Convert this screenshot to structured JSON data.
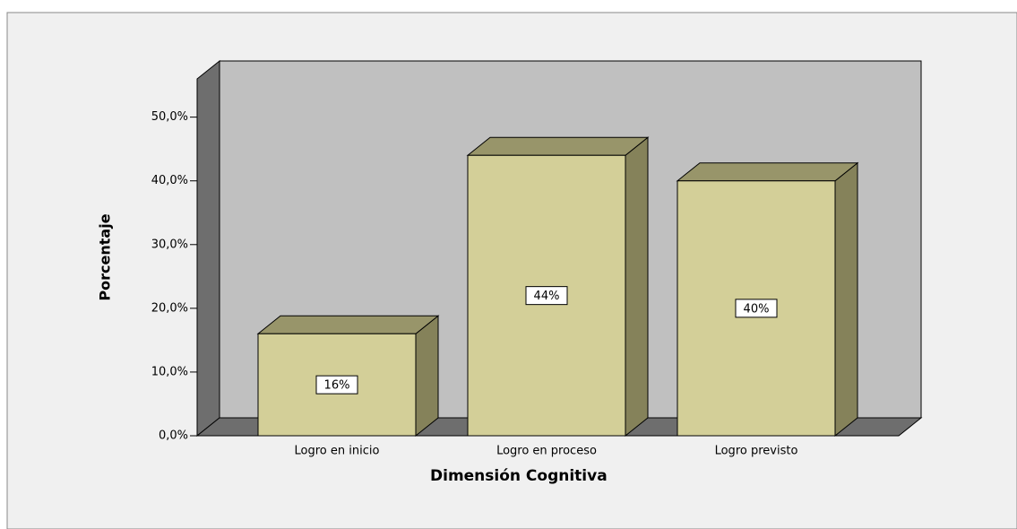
{
  "chart_data": {
    "type": "bar3d",
    "categories": [
      "Logro en inicio",
      "Logro en proceso",
      "Logro previsto"
    ],
    "values": [
      16,
      44,
      40
    ],
    "value_labels": [
      "16%",
      "44%",
      "40%"
    ],
    "color": "#d3cf98",
    "ylim": [
      0,
      56
    ],
    "yticks": [
      {
        "value": 0,
        "label": "0,0%"
      },
      {
        "value": 10,
        "label": "10,0%"
      },
      {
        "value": 20,
        "label": "20,0%"
      },
      {
        "value": 30,
        "label": "30,0%"
      },
      {
        "value": 40,
        "label": "40,0%"
      },
      {
        "value": 50,
        "label": "50,0%"
      }
    ],
    "xlabel": "Dimensión Cognitiva",
    "ylabel": "Porcentaje"
  }
}
